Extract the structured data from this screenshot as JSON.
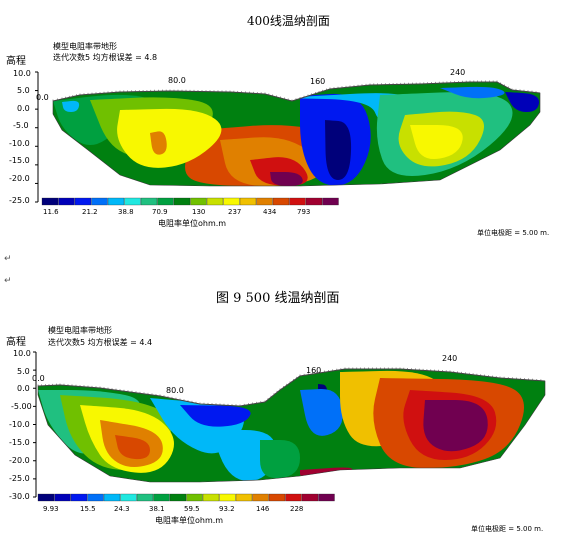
{
  "page": {
    "title_top": "400线温纳剖面",
    "figure_caption": "图 9    500 线温纳剖面",
    "paragraph_marks": [
      "↵",
      "↵"
    ]
  },
  "chart_data": [
    {
      "type": "heatmap",
      "name": "400线温纳剖面",
      "ylabel": "高程",
      "info_lines": [
        "模型电阻率带地形",
        "迭代次数5 均方根误差 = 4.8"
      ],
      "yticks": [
        "10.0",
        "5.0",
        "0.0",
        "-5.0",
        "-10.0",
        "-15.0",
        "-20.0",
        "-25.0"
      ],
      "ylim": [
        -25.0,
        10.0
      ],
      "x_markers": [
        "0.0",
        "80.0",
        "160",
        "240"
      ],
      "scale_labels": [
        "11.6",
        "21.2",
        "38.8",
        "70.9",
        "130",
        "237",
        "434",
        "793"
      ],
      "scale_title": "电阻率单位ohm.m",
      "electrode_spacing": "单位电极距 = 5.00 m.",
      "palette": [
        "#00007a",
        "#0000b8",
        "#0018f0",
        "#0070f8",
        "#00b8f8",
        "#20e8e0",
        "#20c080",
        "#00a040",
        "#008010",
        "#70c000",
        "#c8e000",
        "#f8f800",
        "#f0c000",
        "#e08000",
        "#d84800",
        "#d01010",
        "#a00030",
        "#700050"
      ]
    },
    {
      "type": "heatmap",
      "name": "500线温纳剖面",
      "ylabel": "高程",
      "info_lines": [
        "模型电阻率带地形",
        "迭代次数5 均方根误差 = 4.4"
      ],
      "yticks": [
        "10.0",
        "5.0",
        "0.0",
        "-5.00",
        "-10.0",
        "-15.0",
        "-20.0",
        "-25.0",
        "-30.0"
      ],
      "ylim": [
        -30.0,
        10.0
      ],
      "x_markers": [
        "0.0",
        "80.0",
        "160",
        "240"
      ],
      "scale_labels": [
        "9.93",
        "15.5",
        "24.3",
        "38.1",
        "59.5",
        "93.2",
        "146",
        "228"
      ],
      "scale_title": "电阻率单位ohm.m",
      "electrode_spacing": "单位电极距 = 5.00 m.",
      "palette": [
        "#00007a",
        "#0000b8",
        "#0018f0",
        "#0070f8",
        "#00b8f8",
        "#20e8e0",
        "#20c080",
        "#00a040",
        "#008010",
        "#70c000",
        "#c8e000",
        "#f8f800",
        "#f0c000",
        "#e08000",
        "#d84800",
        "#d01010",
        "#a00030",
        "#700050"
      ]
    }
  ]
}
